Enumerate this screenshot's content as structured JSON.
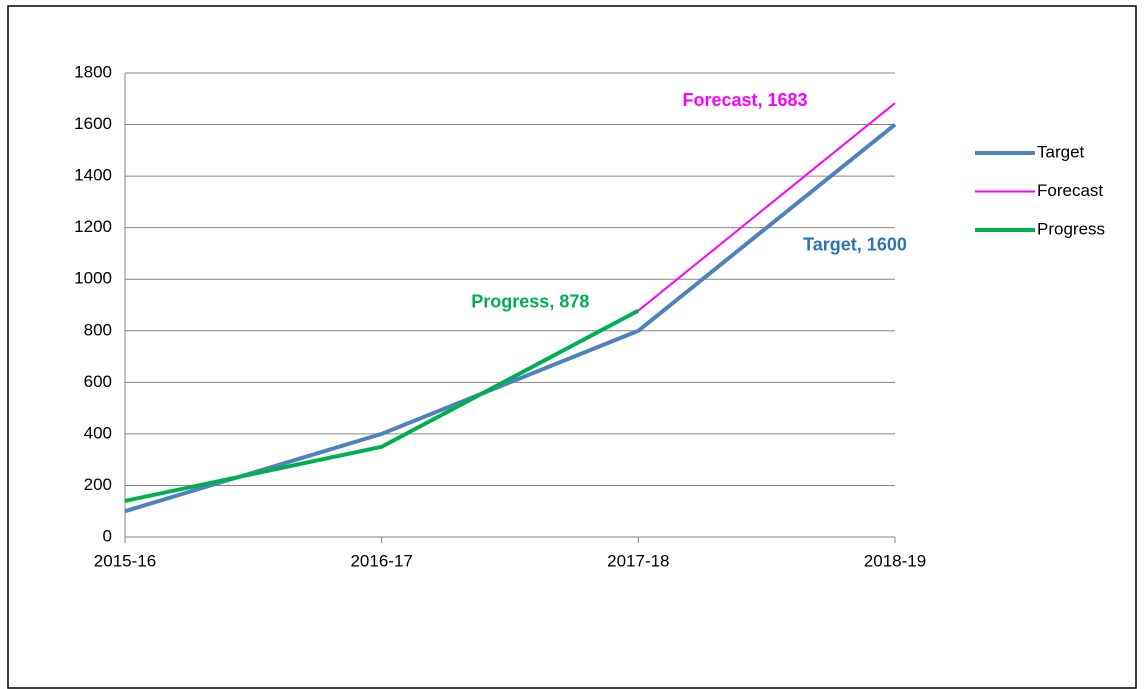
{
  "chart_data": {
    "type": "line",
    "categories": [
      "2015-16",
      "2016-17",
      "2017-18",
      "2018-19"
    ],
    "series": [
      {
        "name": "Target",
        "color": "#4f81bd",
        "values": [
          100,
          400,
          800,
          1600
        ],
        "value_labels": [
          null,
          null,
          null,
          "Target, 1600"
        ],
        "label_color": "#2e75b6"
      },
      {
        "name": "Forecast",
        "color": "#ff00ff",
        "values": [
          null,
          null,
          878,
          1683
        ],
        "value_labels": [
          null,
          null,
          null,
          "Forecast, 1683"
        ],
        "label_color": "#ff00ff"
      },
      {
        "name": "Progress",
        "color": "#00b050",
        "values": [
          140,
          350,
          878,
          null
        ],
        "value_labels": [
          null,
          null,
          "Progress, 878",
          null
        ],
        "label_color": "#00b050"
      }
    ],
    "ylim": [
      0,
      1800
    ],
    "yticks": [
      0,
      200,
      400,
      600,
      800,
      1000,
      1200,
      1400,
      1600,
      1800
    ],
    "grid": true,
    "legend": "right"
  }
}
